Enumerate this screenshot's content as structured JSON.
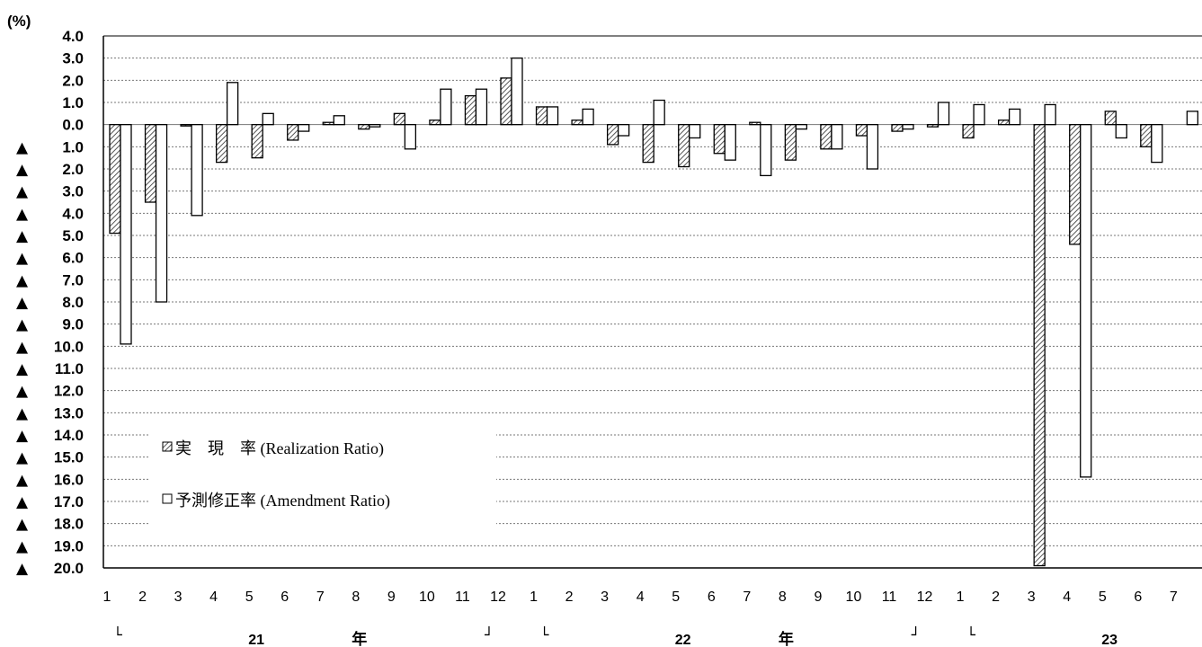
{
  "chart_data": {
    "type": "bar",
    "unit_label": "(%)",
    "negative_marker": "▲",
    "ylim": [
      -20,
      4
    ],
    "y_ticks": [
      4,
      3,
      2,
      1,
      0,
      -1,
      -2,
      -3,
      -4,
      -5,
      -6,
      -7,
      -8,
      -9,
      -10,
      -11,
      -12,
      -13,
      -14,
      -15,
      -16,
      -17,
      -18,
      -19,
      -20
    ],
    "grid": "horizontal-dotted",
    "legend_position": "lower-left",
    "categories": [
      "1",
      "2",
      "3",
      "4",
      "5",
      "6",
      "7",
      "8",
      "9",
      "10",
      "11",
      "12",
      "1",
      "2",
      "3",
      "4",
      "5",
      "6",
      "7",
      "8",
      "9",
      "10",
      "11",
      "12",
      "1",
      "2",
      "3",
      "4",
      "5",
      "6",
      "7"
    ],
    "year_labels": [
      {
        "open": "└",
        "year": "21",
        "nen": "年",
        "close": "┘"
      },
      {
        "open": "└",
        "year": "22",
        "nen": "年",
        "close": "┘"
      },
      {
        "open": "└",
        "year": "23",
        "nen": "年",
        "close": ""
      }
    ],
    "series": [
      {
        "name": "実　現　率 (Realization Ratio)",
        "pattern": "hatched",
        "values": [
          -4.9,
          -3.5,
          0,
          -1.7,
          -1.5,
          -0.7,
          0.1,
          -0.2,
          0.5,
          0.2,
          1.3,
          2.1,
          0.8,
          0.2,
          -0.9,
          -1.7,
          -1.9,
          -1.3,
          0.1,
          -1.6,
          -1.1,
          -0.5,
          -0.3,
          -0.1,
          -0.6,
          0.2,
          -19.9,
          -5.4,
          0.6,
          -1.0,
          null
        ]
      },
      {
        "name": "予測修正率 (Amendment Ratio)",
        "pattern": "white",
        "values": [
          -9.9,
          -8.0,
          -4.1,
          1.9,
          0.5,
          -0.3,
          0.4,
          -0.1,
          -1.1,
          1.6,
          1.6,
          3.0,
          0.8,
          0.7,
          -0.5,
          1.1,
          -0.6,
          -1.6,
          -2.3,
          -0.2,
          -1.1,
          -2.0,
          -0.2,
          1.0,
          0.9,
          0.7,
          0.9,
          -15.9,
          -0.6,
          -1.7,
          0.6
        ]
      }
    ]
  }
}
